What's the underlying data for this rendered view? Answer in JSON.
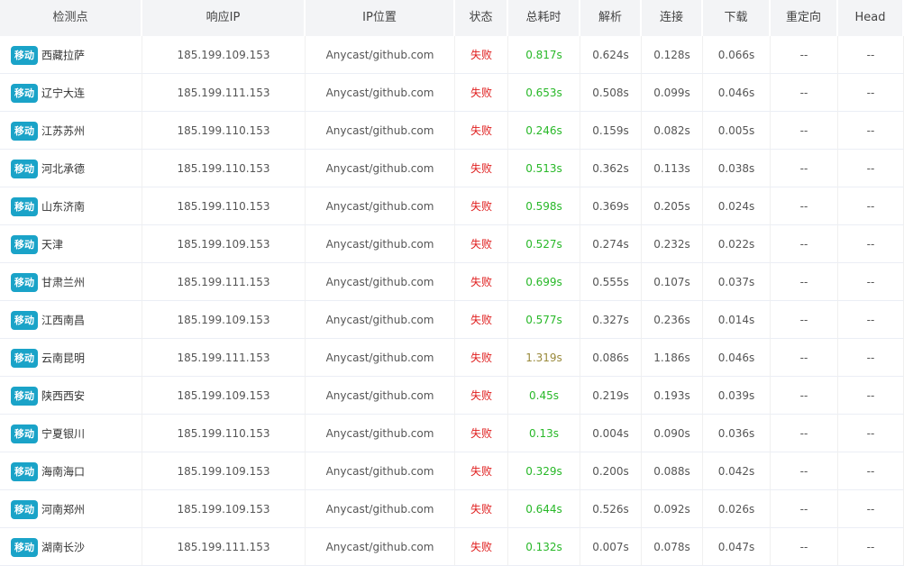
{
  "headers": [
    "检测点",
    "响应IP",
    "IP位置",
    "状态",
    "总耗时",
    "解析",
    "连接",
    "下载",
    "重定向",
    "Head"
  ],
  "colors": {
    "fail": "#e02020",
    "fast": "#28b828",
    "slow": "#9a8a3c",
    "badge": "#1aa3c8"
  },
  "rows": [
    {
      "isp": "移动",
      "node": "西藏拉萨",
      "ip": "185.199.109.153",
      "location": "Anycast/github.com",
      "status": "失败",
      "total": "0.817s",
      "total_class": "fast",
      "dns": "0.624s",
      "connect": "0.128s",
      "download": "0.066s",
      "redirect": "--",
      "head": "--"
    },
    {
      "isp": "移动",
      "node": "辽宁大连",
      "ip": "185.199.111.153",
      "location": "Anycast/github.com",
      "status": "失败",
      "total": "0.653s",
      "total_class": "fast",
      "dns": "0.508s",
      "connect": "0.099s",
      "download": "0.046s",
      "redirect": "--",
      "head": "--"
    },
    {
      "isp": "移动",
      "node": "江苏苏州",
      "ip": "185.199.110.153",
      "location": "Anycast/github.com",
      "status": "失败",
      "total": "0.246s",
      "total_class": "fast",
      "dns": "0.159s",
      "connect": "0.082s",
      "download": "0.005s",
      "redirect": "--",
      "head": "--"
    },
    {
      "isp": "移动",
      "node": "河北承德",
      "ip": "185.199.110.153",
      "location": "Anycast/github.com",
      "status": "失败",
      "total": "0.513s",
      "total_class": "fast",
      "dns": "0.362s",
      "connect": "0.113s",
      "download": "0.038s",
      "redirect": "--",
      "head": "--"
    },
    {
      "isp": "移动",
      "node": "山东济南",
      "ip": "185.199.110.153",
      "location": "Anycast/github.com",
      "status": "失败",
      "total": "0.598s",
      "total_class": "fast",
      "dns": "0.369s",
      "connect": "0.205s",
      "download": "0.024s",
      "redirect": "--",
      "head": "--"
    },
    {
      "isp": "移动",
      "node": "天津",
      "ip": "185.199.109.153",
      "location": "Anycast/github.com",
      "status": "失败",
      "total": "0.527s",
      "total_class": "fast",
      "dns": "0.274s",
      "connect": "0.232s",
      "download": "0.022s",
      "redirect": "--",
      "head": "--"
    },
    {
      "isp": "移动",
      "node": "甘肃兰州",
      "ip": "185.199.111.153",
      "location": "Anycast/github.com",
      "status": "失败",
      "total": "0.699s",
      "total_class": "fast",
      "dns": "0.555s",
      "connect": "0.107s",
      "download": "0.037s",
      "redirect": "--",
      "head": "--"
    },
    {
      "isp": "移动",
      "node": "江西南昌",
      "ip": "185.199.109.153",
      "location": "Anycast/github.com",
      "status": "失败",
      "total": "0.577s",
      "total_class": "fast",
      "dns": "0.327s",
      "connect": "0.236s",
      "download": "0.014s",
      "redirect": "--",
      "head": "--"
    },
    {
      "isp": "移动",
      "node": "云南昆明",
      "ip": "185.199.111.153",
      "location": "Anycast/github.com",
      "status": "失败",
      "total": "1.319s",
      "total_class": "slow",
      "dns": "0.086s",
      "connect": "1.186s",
      "download": "0.046s",
      "redirect": "--",
      "head": "--"
    },
    {
      "isp": "移动",
      "node": "陕西西安",
      "ip": "185.199.109.153",
      "location": "Anycast/github.com",
      "status": "失败",
      "total": "0.45s",
      "total_class": "fast",
      "dns": "0.219s",
      "connect": "0.193s",
      "download": "0.039s",
      "redirect": "--",
      "head": "--"
    },
    {
      "isp": "移动",
      "node": "宁夏银川",
      "ip": "185.199.110.153",
      "location": "Anycast/github.com",
      "status": "失败",
      "total": "0.13s",
      "total_class": "fast",
      "dns": "0.004s",
      "connect": "0.090s",
      "download": "0.036s",
      "redirect": "--",
      "head": "--"
    },
    {
      "isp": "移动",
      "node": "海南海口",
      "ip": "185.199.109.153",
      "location": "Anycast/github.com",
      "status": "失败",
      "total": "0.329s",
      "total_class": "fast",
      "dns": "0.200s",
      "connect": "0.088s",
      "download": "0.042s",
      "redirect": "--",
      "head": "--"
    },
    {
      "isp": "移动",
      "node": "河南郑州",
      "ip": "185.199.109.153",
      "location": "Anycast/github.com",
      "status": "失败",
      "total": "0.644s",
      "total_class": "fast",
      "dns": "0.526s",
      "connect": "0.092s",
      "download": "0.026s",
      "redirect": "--",
      "head": "--"
    },
    {
      "isp": "移动",
      "node": "湖南长沙",
      "ip": "185.199.111.153",
      "location": "Anycast/github.com",
      "status": "失败",
      "total": "0.132s",
      "total_class": "fast",
      "dns": "0.007s",
      "connect": "0.078s",
      "download": "0.047s",
      "redirect": "--",
      "head": "--"
    }
  ]
}
